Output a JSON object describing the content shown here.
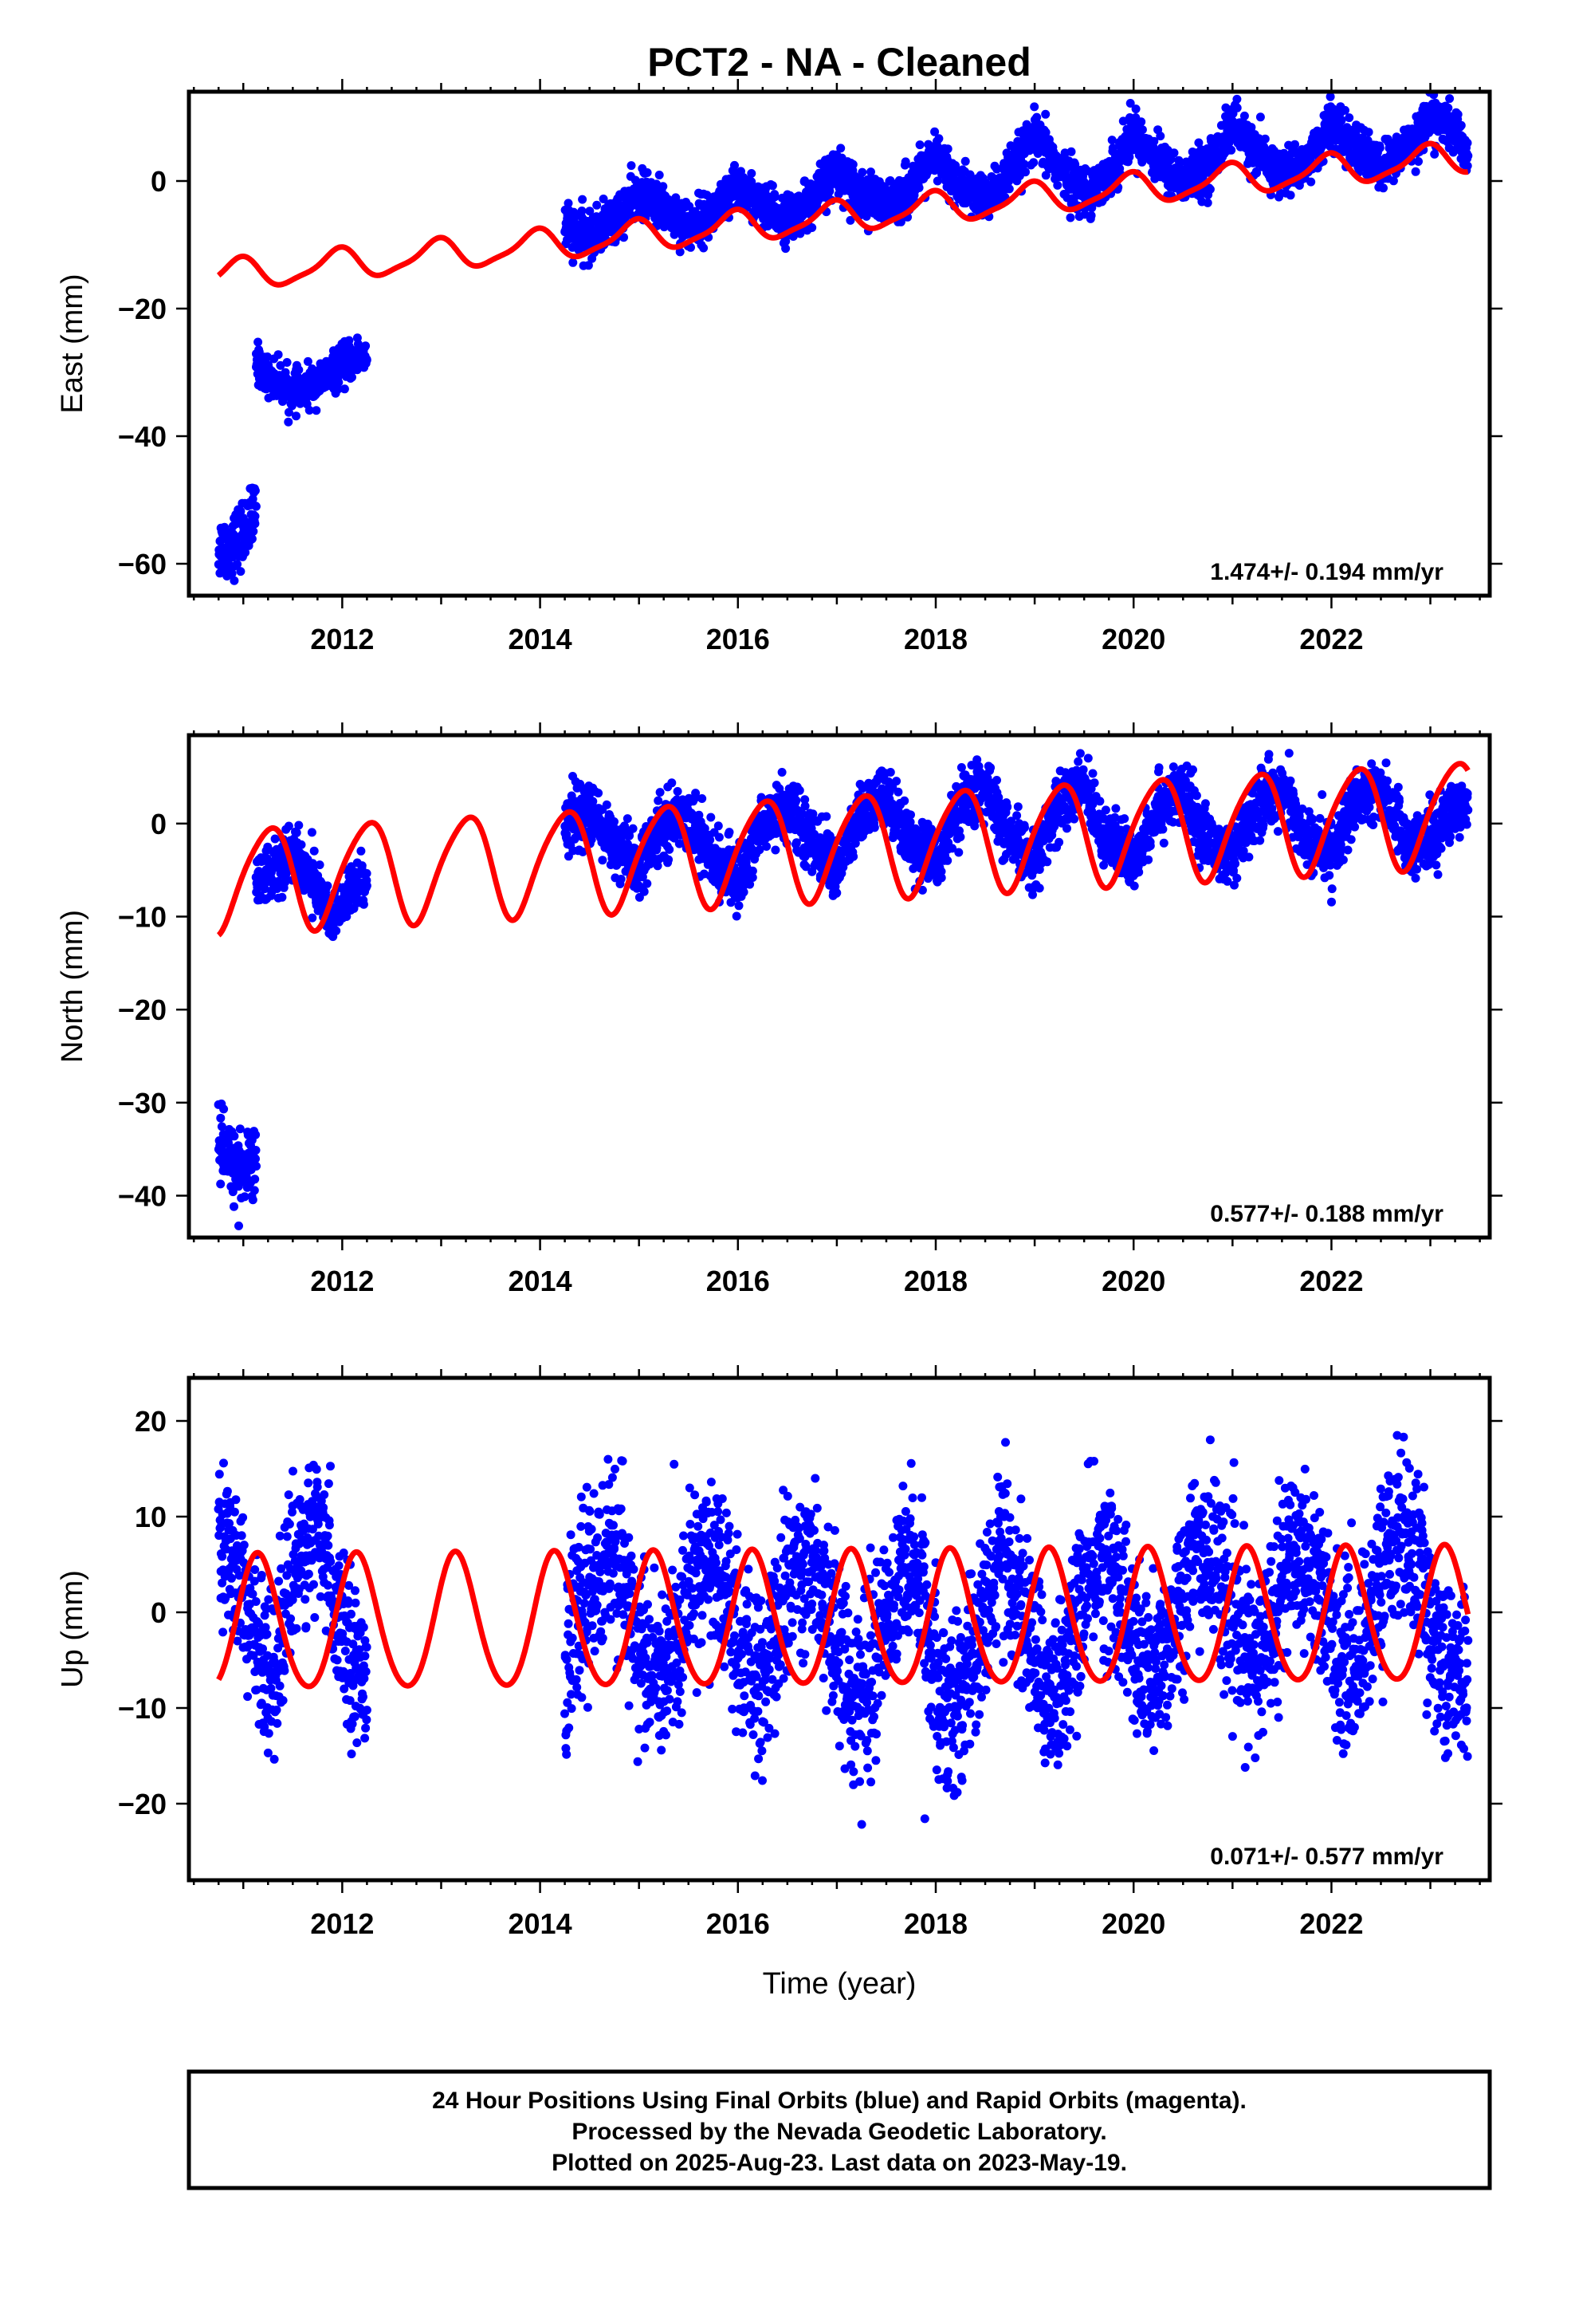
{
  "title": "PCT2  - NA - Cleaned",
  "x_axis_label": "Time (year)",
  "footer": {
    "line1": "24 Hour Positions Using Final Orbits (blue) and Rapid Orbits (magenta).",
    "line2": "Processed by the Nevada Geodetic Laboratory.",
    "line3": "Plotted on 2025-Aug-23. Last data on 2023-May-19."
  },
  "colors": {
    "data": "#0000ff",
    "model": "#ff0000",
    "frame": "#000000"
  },
  "chart_data": [
    {
      "type": "scatter",
      "ylabel": "East (mm)",
      "xlim": [
        2010.45,
        2023.6
      ],
      "ylim": [
        -65,
        14
      ],
      "xticks": [
        2012,
        2014,
        2016,
        2018,
        2020,
        2022
      ],
      "yticks": [
        0,
        -20,
        -40,
        -60
      ],
      "rate": "1.474+/- 0.194 mm/yr",
      "data_segments": [
        {
          "x": [
            2010.75,
            2010.85,
            2010.95,
            2011.05,
            2011.13
          ],
          "y": [
            -57.5,
            -57.5,
            -56,
            -54,
            -52
          ],
          "spread": 2.5
        },
        {
          "x": [
            2011.13,
            2011.2,
            2011.3,
            2011.4,
            2011.5,
            2011.6,
            2011.7,
            2011.8,
            2011.9,
            2012.0,
            2012.1,
            2012.2,
            2012.25
          ],
          "y": [
            -28,
            -30,
            -31,
            -32,
            -33,
            -33,
            -32,
            -31,
            -30,
            -29,
            -28,
            -27,
            -28
          ],
          "spread": 1.5
        },
        {
          "x": [
            2014.25,
            2014.5,
            2014.75,
            2015.0,
            2015.25,
            2015.5,
            2015.75,
            2016.0,
            2016.25,
            2016.5,
            2016.75,
            2017.0,
            2017.25,
            2017.5,
            2017.75,
            2018.0,
            2018.25,
            2018.5,
            2018.75,
            2019.0,
            2019.25,
            2019.5,
            2019.75,
            2020.0,
            2020.25,
            2020.5,
            2020.75,
            2021.0,
            2021.25,
            2021.5,
            2021.75,
            2022.0,
            2022.25,
            2022.5,
            2022.75,
            2023.0,
            2023.25,
            2023.38
          ],
          "y": [
            -7,
            -9,
            -6,
            -2,
            -4,
            -7,
            -5,
            -1,
            -4,
            -6,
            -3,
            2,
            -2,
            -4,
            -1,
            4,
            -1,
            -3,
            1,
            7,
            2,
            -2,
            1,
            8,
            3,
            0,
            2,
            9,
            4,
            1,
            3,
            9,
            5,
            2,
            5,
            10,
            8,
            4
          ],
          "spread": 1.8
        }
      ],
      "model": {
        "intercept_2016": -7.2,
        "rate_mm_yr": 1.474,
        "annual_amp": 2.3,
        "annual_phase": 0.3,
        "semiannual_amp": 0.6,
        "semiannual_phase": 0.1,
        "offsets": [
          {
            "t": 2021.4,
            "dy": 0
          }
        ]
      }
    },
    {
      "type": "scatter",
      "ylabel": "North (mm)",
      "xlim": [
        2010.45,
        2023.6
      ],
      "ylim": [
        -44.5,
        9.5
      ],
      "xticks": [
        2012,
        2014,
        2016,
        2018,
        2020,
        2022
      ],
      "yticks": [
        0,
        -10,
        -20,
        -30,
        -40
      ],
      "rate": "0.577+/- 0.188 mm/yr",
      "data_segments": [
        {
          "x": [
            2010.75,
            2010.85,
            2010.95,
            2011.05,
            2011.13
          ],
          "y": [
            -35,
            -36,
            -37,
            -37,
            -36
          ],
          "spread": 2.0
        },
        {
          "x": [
            2011.13,
            2011.3,
            2011.5,
            2011.7,
            2011.9,
            2012.05,
            2012.25
          ],
          "y": [
            -6,
            -5,
            -3,
            -6,
            -10,
            -8,
            -6
          ],
          "spread": 1.5
        },
        {
          "x": [
            2014.25,
            2014.5,
            2014.75,
            2015.0,
            2015.25,
            2015.5,
            2015.75,
            2016.0,
            2016.25,
            2016.5,
            2016.75,
            2017.0,
            2017.25,
            2017.5,
            2017.75,
            2018.0,
            2018.25,
            2018.5,
            2018.75,
            2019.0,
            2019.25,
            2019.5,
            2019.75,
            2020.0,
            2020.25,
            2020.5,
            2020.75,
            2021.0,
            2021.25,
            2021.5,
            2021.75,
            2022.0,
            2022.25,
            2022.5,
            2022.75,
            2023.0,
            2023.25,
            2023.38
          ],
          "y": [
            0,
            1,
            -2,
            -5,
            0,
            1,
            -4,
            -6,
            0,
            2,
            -2,
            -5,
            1,
            3,
            -2,
            -4,
            2,
            4,
            -2,
            -4,
            2,
            4,
            -2,
            -4,
            2,
            3,
            -2,
            -4,
            2,
            4,
            -2,
            -3,
            2,
            4,
            -2,
            -2,
            2,
            3
          ],
          "spread": 1.6
        }
      ],
      "model": {
        "intercept_2016": -3.0,
        "rate_mm_yr": 0.577,
        "annual_amp": 5.5,
        "annual_phase": 0.0,
        "semiannual_amp": 0.8,
        "semiannual_phase": 0.2,
        "offsets": []
      }
    },
    {
      "type": "scatter",
      "ylabel": "Up (mm)",
      "xlim": [
        2010.45,
        2023.6
      ],
      "ylim": [
        -28,
        24.5
      ],
      "xticks": [
        2012,
        2014,
        2016,
        2018,
        2020,
        2022
      ],
      "yticks": [
        20,
        10,
        0,
        -10,
        -20
      ],
      "rate": "0.071+/- 0.577 mm/yr",
      "data_segments": [
        {
          "x": [
            2010.75,
            2010.9,
            2011.05,
            2011.2,
            2011.35,
            2011.5,
            2011.65,
            2011.8,
            2011.95,
            2012.1,
            2012.25
          ],
          "y": [
            8,
            6,
            0,
            -6,
            -4,
            4,
            8,
            7,
            1,
            -5,
            -6
          ],
          "spread": 4.0
        },
        {
          "x": [
            2014.25,
            2014.45,
            2014.65,
            2014.85,
            2015.05,
            2015.25,
            2015.45,
            2015.65,
            2015.85,
            2016.05,
            2016.25,
            2016.45,
            2016.65,
            2016.85,
            2017.05,
            2017.25,
            2017.45,
            2017.65,
            2017.85,
            2018.05,
            2018.25,
            2018.45,
            2018.65,
            2018.85,
            2019.05,
            2019.25,
            2019.45,
            2019.65,
            2019.85,
            2020.05,
            2020.25,
            2020.45,
            2020.65,
            2020.85,
            2021.05,
            2021.25,
            2021.45,
            2021.65,
            2021.85,
            2022.05,
            2022.25,
            2022.45,
            2022.65,
            2022.85,
            2023.05,
            2023.25,
            2023.38
          ],
          "y": [
            -6,
            2,
            6,
            3,
            -5,
            -8,
            0,
            6,
            3,
            -5,
            -8,
            1,
            6,
            3,
            -5,
            -10,
            -2,
            5,
            2,
            -8,
            -10,
            -1,
            6,
            2,
            -7,
            -8,
            0,
            6,
            3,
            -6,
            -7,
            1,
            7,
            5,
            -3,
            -6,
            2,
            7,
            4,
            -4,
            -6,
            2,
            9,
            6,
            -3,
            -7,
            -6
          ],
          "spread": 4.5
        }
      ],
      "model": {
        "intercept_2016": -1.0,
        "rate_mm_yr": 0.071,
        "annual_amp": 7.0,
        "annual_phase": 0.1,
        "semiannual_amp": 0.6,
        "semiannual_phase": 0.0,
        "offsets": []
      }
    }
  ]
}
